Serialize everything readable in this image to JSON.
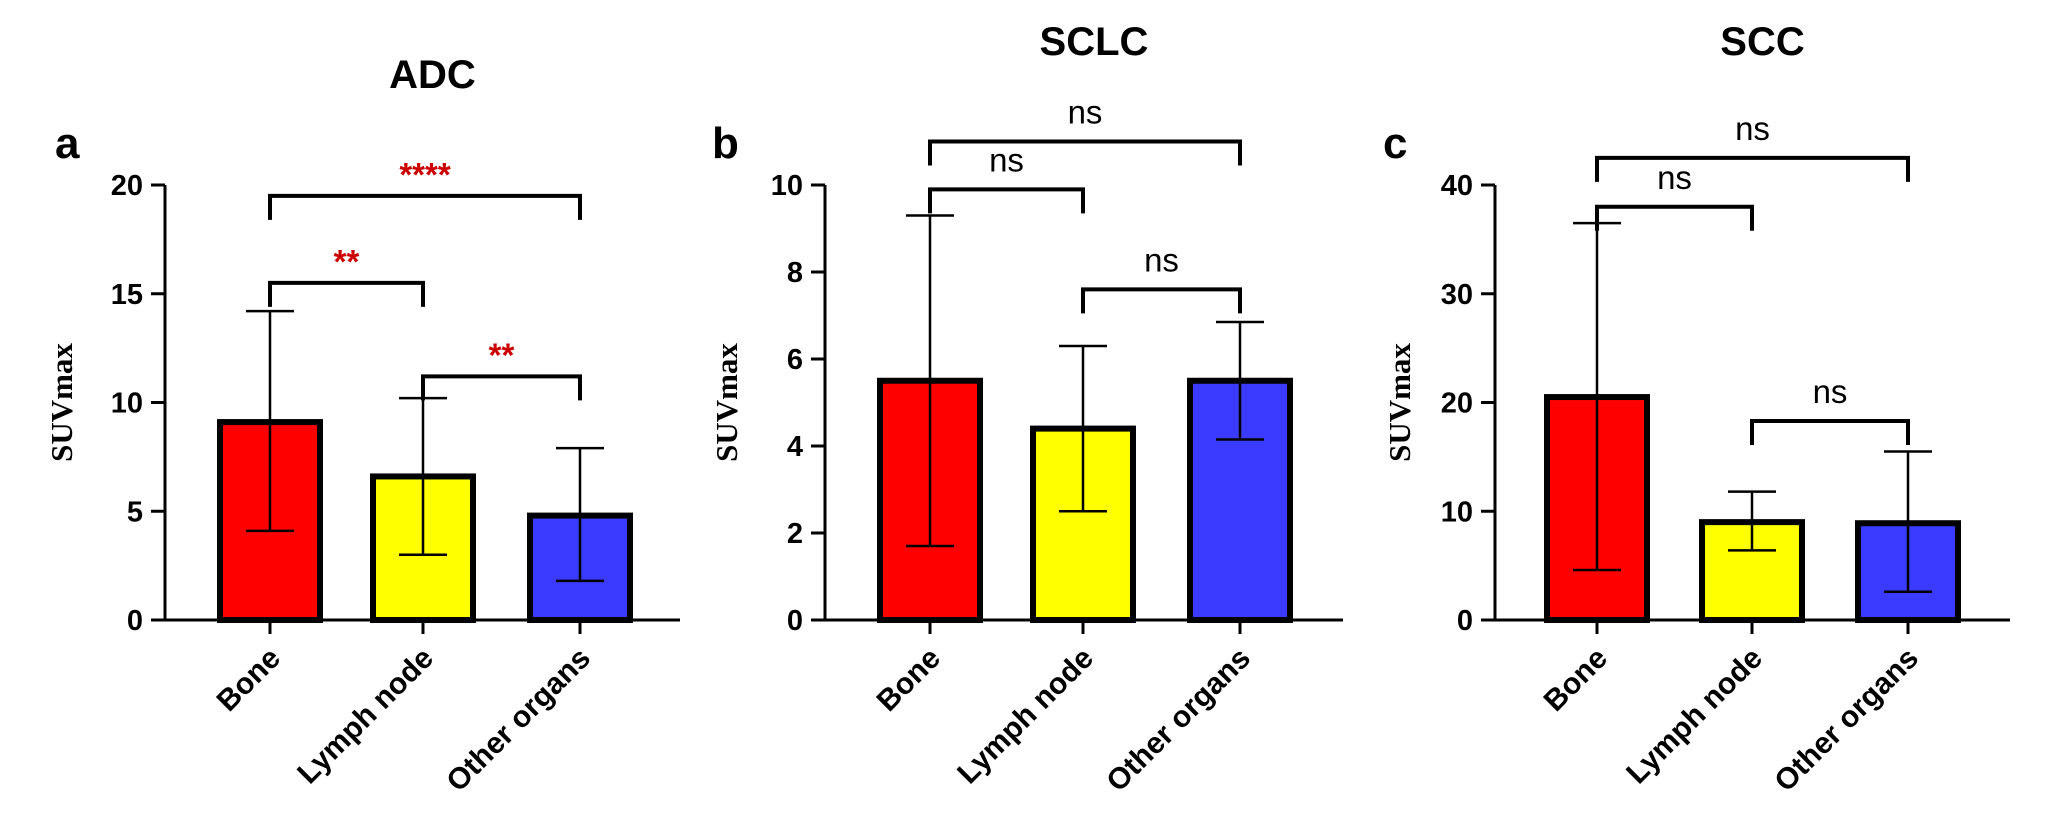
{
  "colors": {
    "bone": "#ff0000",
    "lymph_node": "#ffff00",
    "other_organs": "#3b3bff",
    "significant": "#cc0000",
    "ns": "#000000"
  },
  "chart_data": [
    {
      "type": "bar",
      "panel": "a",
      "title": "ADC",
      "ylabel": "SUVmax",
      "xlabel": "",
      "ylim": [
        0,
        20
      ],
      "yticks": [
        0,
        5,
        10,
        15,
        20
      ],
      "categories": [
        "Bone",
        "Lymph node",
        "Other organs"
      ],
      "values": [
        9.1,
        6.6,
        4.8
      ],
      "error_low": [
        4.1,
        3.0,
        1.8
      ],
      "error_high": [
        14.2,
        10.2,
        7.9
      ],
      "grid": false,
      "comparisons": [
        {
          "from": "Bone",
          "to": "Lymph node",
          "label": "**",
          "bracket_y": 15.5
        },
        {
          "from": "Lymph node",
          "to": "Other organs",
          "label": "**",
          "bracket_y": 11.2
        },
        {
          "from": "Bone",
          "to": "Other organs",
          "label": "****",
          "bracket_y": 19.5
        }
      ]
    },
    {
      "type": "bar",
      "panel": "b",
      "title": "SCLC",
      "ylabel": "SUVmax",
      "xlabel": "",
      "ylim": [
        0,
        10
      ],
      "yticks": [
        0,
        2,
        4,
        6,
        8,
        10
      ],
      "categories": [
        "Bone",
        "Lymph node",
        "Other organs"
      ],
      "values": [
        5.5,
        4.4,
        5.5
      ],
      "error_low": [
        1.7,
        2.5,
        4.15
      ],
      "error_high": [
        9.3,
        6.3,
        6.85
      ],
      "grid": false,
      "comparisons": [
        {
          "from": "Bone",
          "to": "Lymph node",
          "label": "ns",
          "bracket_y": 9.9
        },
        {
          "from": "Lymph node",
          "to": "Other organs",
          "label": "ns",
          "bracket_y": 7.6
        },
        {
          "from": "Bone",
          "to": "Other organs",
          "label": "ns",
          "bracket_y": 11.0
        }
      ]
    },
    {
      "type": "bar",
      "panel": "c",
      "title": "SCC",
      "ylabel": "SUVmax",
      "xlabel": "",
      "ylim": [
        0,
        40
      ],
      "yticks": [
        0,
        10,
        20,
        30,
        40
      ],
      "categories": [
        "Bone",
        "Lymph node",
        "Other organs"
      ],
      "values": [
        20.5,
        9.0,
        8.9
      ],
      "error_low": [
        4.6,
        6.4,
        2.6
      ],
      "error_high": [
        36.5,
        11.8,
        15.5
      ],
      "grid": false,
      "comparisons": [
        {
          "from": "Bone",
          "to": "Lymph node",
          "label": "ns",
          "bracket_y": 38.0
        },
        {
          "from": "Lymph node",
          "to": "Other organs",
          "label": "ns",
          "bracket_y": 18.3
        },
        {
          "from": "Bone",
          "to": "Other organs",
          "label": "ns",
          "bracket_y": 42.5
        }
      ]
    }
  ]
}
